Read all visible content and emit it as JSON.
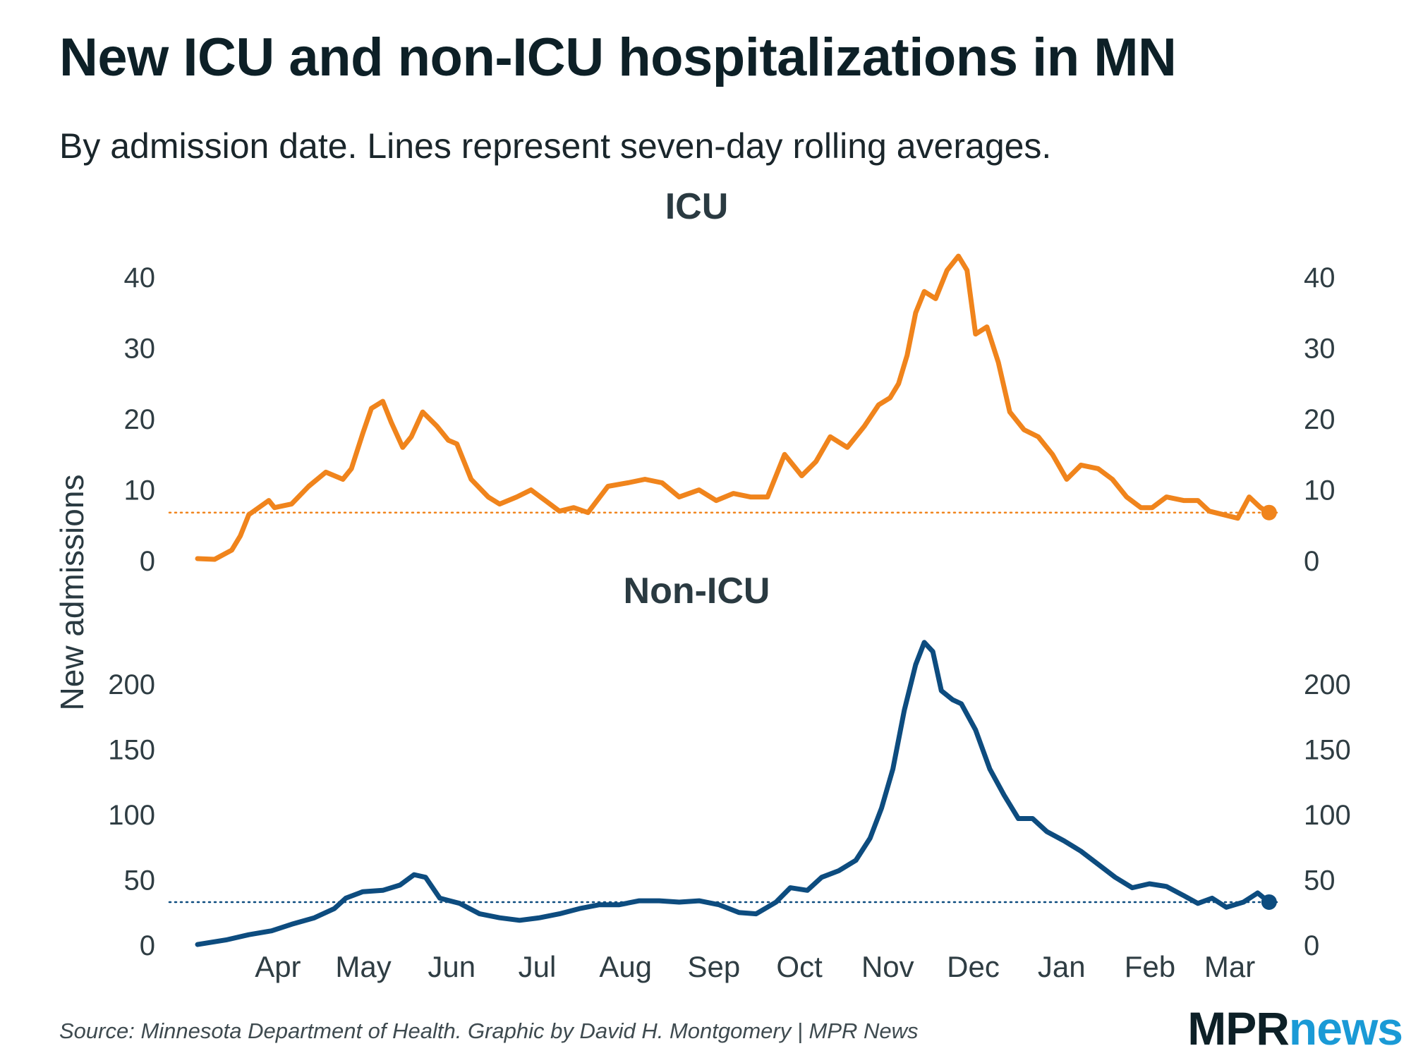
{
  "title": "New ICU and non-ICU hospitalizations in MN",
  "subtitle": "By admission date. Lines represent seven-day rolling averages.",
  "source": "Source: Minnesota Department of Health. Graphic by David H. Montgomery | MPR News",
  "logo": {
    "part1": "MPR",
    "part2": "news"
  },
  "colors": {
    "icu": "#f0841c",
    "non_icu": "#0d4c7f",
    "text": "#1f2d33"
  },
  "chart_data": [
    {
      "type": "line",
      "title": "ICU",
      "ylabel": "New admissions",
      "ylim": [
        0,
        45
      ],
      "yticks": [
        0,
        10,
        20,
        30,
        40
      ],
      "grid": false,
      "reference_line_y": 6.8,
      "x_range": [
        "2020-03-10",
        "2021-03-25"
      ],
      "x_ticks": [
        {
          "date": "2020-04-01",
          "label": "Apr"
        },
        {
          "date": "2020-05-01",
          "label": "May"
        },
        {
          "date": "2020-06-01",
          "label": "Jun"
        },
        {
          "date": "2020-07-01",
          "label": "Jul"
        },
        {
          "date": "2020-08-01",
          "label": "Aug"
        },
        {
          "date": "2020-09-01",
          "label": "Sep"
        },
        {
          "date": "2020-10-01",
          "label": "Oct"
        },
        {
          "date": "2020-11-01",
          "label": "Nov"
        },
        {
          "date": "2020-12-01",
          "label": "Dec"
        },
        {
          "date": "2021-01-01",
          "label": "Jan"
        },
        {
          "date": "2021-02-01",
          "label": "Feb"
        },
        {
          "date": "2021-03-01",
          "label": "Mar"
        }
      ],
      "series": [
        {
          "color": "#f0841c",
          "points": [
            [
              "2020-03-10",
              0.3
            ],
            [
              "2020-03-16",
              0.2
            ],
            [
              "2020-03-22",
              1.5
            ],
            [
              "2020-03-25",
              3.5
            ],
            [
              "2020-03-28",
              6.5
            ],
            [
              "2020-04-04",
              8.5
            ],
            [
              "2020-04-06",
              7.5
            ],
            [
              "2020-04-12",
              8.0
            ],
            [
              "2020-04-18",
              10.5
            ],
            [
              "2020-04-24",
              12.5
            ],
            [
              "2020-04-30",
              11.5
            ],
            [
              "2020-05-03",
              13.0
            ],
            [
              "2020-05-07",
              18.0
            ],
            [
              "2020-05-10",
              21.5
            ],
            [
              "2020-05-14",
              22.5
            ],
            [
              "2020-05-17",
              19.5
            ],
            [
              "2020-05-21",
              16.0
            ],
            [
              "2020-05-24",
              17.5
            ],
            [
              "2020-05-28",
              21.0
            ],
            [
              "2020-06-02",
              19.0
            ],
            [
              "2020-06-06",
              17.0
            ],
            [
              "2020-06-09",
              16.5
            ],
            [
              "2020-06-14",
              11.5
            ],
            [
              "2020-06-20",
              9.0
            ],
            [
              "2020-06-24",
              8.0
            ],
            [
              "2020-06-30",
              9.0
            ],
            [
              "2020-07-05",
              10.0
            ],
            [
              "2020-07-10",
              8.5
            ],
            [
              "2020-07-15",
              7.0
            ],
            [
              "2020-07-20",
              7.5
            ],
            [
              "2020-07-25",
              6.8
            ],
            [
              "2020-08-01",
              10.5
            ],
            [
              "2020-08-08",
              11.0
            ],
            [
              "2020-08-14",
              11.5
            ],
            [
              "2020-08-20",
              11.0
            ],
            [
              "2020-08-26",
              9.0
            ],
            [
              "2020-09-02",
              10.0
            ],
            [
              "2020-09-08",
              8.5
            ],
            [
              "2020-09-14",
              9.5
            ],
            [
              "2020-09-20",
              9.0
            ],
            [
              "2020-09-26",
              9.0
            ],
            [
              "2020-10-02",
              15.0
            ],
            [
              "2020-10-08",
              12.0
            ],
            [
              "2020-10-13",
              14.0
            ],
            [
              "2020-10-18",
              17.5
            ],
            [
              "2020-10-24",
              16.0
            ],
            [
              "2020-10-30",
              19.0
            ],
            [
              "2020-11-04",
              22.0
            ],
            [
              "2020-11-08",
              23.0
            ],
            [
              "2020-11-11",
              25.0
            ],
            [
              "2020-11-14",
              29.0
            ],
            [
              "2020-11-17",
              35.0
            ],
            [
              "2020-11-20",
              38.0
            ],
            [
              "2020-11-24",
              37.0
            ],
            [
              "2020-11-28",
              41.0
            ],
            [
              "2020-12-02",
              43.0
            ],
            [
              "2020-12-05",
              41.0
            ],
            [
              "2020-12-08",
              32.0
            ],
            [
              "2020-12-12",
              33.0
            ],
            [
              "2020-12-16",
              28.0
            ],
            [
              "2020-12-20",
              21.0
            ],
            [
              "2020-12-25",
              18.5
            ],
            [
              "2020-12-30",
              17.5
            ],
            [
              "2021-01-04",
              15.0
            ],
            [
              "2021-01-09",
              11.5
            ],
            [
              "2021-01-14",
              13.5
            ],
            [
              "2021-01-20",
              13.0
            ],
            [
              "2021-01-25",
              11.5
            ],
            [
              "2021-01-30",
              9.0
            ],
            [
              "2021-02-04",
              7.5
            ],
            [
              "2021-02-08",
              7.5
            ],
            [
              "2021-02-13",
              9.0
            ],
            [
              "2021-02-19",
              8.5
            ],
            [
              "2021-02-24",
              8.5
            ],
            [
              "2021-02-28",
              7.0
            ],
            [
              "2021-03-05",
              6.5
            ],
            [
              "2021-03-10",
              6.0
            ],
            [
              "2021-03-14",
              9.0
            ],
            [
              "2021-03-18",
              7.5
            ],
            [
              "2021-03-21",
              6.8
            ]
          ]
        }
      ]
    },
    {
      "type": "line",
      "title": "Non-ICU",
      "ylabel": "New admissions",
      "ylim": [
        0,
        240
      ],
      "yticks": [
        0,
        50,
        100,
        150,
        200
      ],
      "grid": false,
      "reference_line_y": 33,
      "x_range": [
        "2020-03-10",
        "2021-03-25"
      ],
      "series": [
        {
          "color": "#0d4c7f",
          "points": [
            [
              "2020-03-10",
              0.5
            ],
            [
              "2020-03-20",
              4.0
            ],
            [
              "2020-03-28",
              8.0
            ],
            [
              "2020-04-05",
              11.0
            ],
            [
              "2020-04-12",
              16.0
            ],
            [
              "2020-04-20",
              21.0
            ],
            [
              "2020-04-27",
              28.0
            ],
            [
              "2020-05-01",
              36.0
            ],
            [
              "2020-05-07",
              41.0
            ],
            [
              "2020-05-14",
              42.0
            ],
            [
              "2020-05-20",
              46.0
            ],
            [
              "2020-05-25",
              54.0
            ],
            [
              "2020-05-29",
              52.0
            ],
            [
              "2020-06-03",
              36.0
            ],
            [
              "2020-06-10",
              32.0
            ],
            [
              "2020-06-17",
              24.0
            ],
            [
              "2020-06-24",
              21.0
            ],
            [
              "2020-07-01",
              19.0
            ],
            [
              "2020-07-08",
              21.0
            ],
            [
              "2020-07-15",
              24.0
            ],
            [
              "2020-07-22",
              28.0
            ],
            [
              "2020-07-29",
              31.0
            ],
            [
              "2020-08-05",
              31.0
            ],
            [
              "2020-08-12",
              34.0
            ],
            [
              "2020-08-19",
              34.0
            ],
            [
              "2020-08-26",
              33.0
            ],
            [
              "2020-09-02",
              34.0
            ],
            [
              "2020-09-09",
              31.0
            ],
            [
              "2020-09-16",
              25.0
            ],
            [
              "2020-09-22",
              24.0
            ],
            [
              "2020-09-29",
              33.0
            ],
            [
              "2020-10-04",
              44.0
            ],
            [
              "2020-10-10",
              42.0
            ],
            [
              "2020-10-15",
              52.0
            ],
            [
              "2020-10-21",
              57.0
            ],
            [
              "2020-10-27",
              65.0
            ],
            [
              "2020-11-01",
              82.0
            ],
            [
              "2020-11-05",
              105.0
            ],
            [
              "2020-11-09",
              135.0
            ],
            [
              "2020-11-13",
              180.0
            ],
            [
              "2020-11-17",
              215.0
            ],
            [
              "2020-11-20",
              232.0
            ],
            [
              "2020-11-23",
              225.0
            ],
            [
              "2020-11-26",
              195.0
            ],
            [
              "2020-11-30",
              188.0
            ],
            [
              "2020-12-03",
              185.0
            ],
            [
              "2020-12-08",
              165.0
            ],
            [
              "2020-12-13",
              135.0
            ],
            [
              "2020-12-18",
              115.0
            ],
            [
              "2020-12-23",
              97.0
            ],
            [
              "2020-12-28",
              97.0
            ],
            [
              "2021-01-02",
              87.0
            ],
            [
              "2021-01-08",
              80.0
            ],
            [
              "2021-01-14",
              72.0
            ],
            [
              "2021-01-20",
              62.0
            ],
            [
              "2021-01-26",
              52.0
            ],
            [
              "2021-02-01",
              44.0
            ],
            [
              "2021-02-07",
              47.0
            ],
            [
              "2021-02-13",
              45.0
            ],
            [
              "2021-02-19",
              38.0
            ],
            [
              "2021-02-24",
              32.0
            ],
            [
              "2021-03-01",
              36.0
            ],
            [
              "2021-03-06",
              29.0
            ],
            [
              "2021-03-12",
              33.0
            ],
            [
              "2021-03-17",
              40.0
            ],
            [
              "2021-03-21",
              33.0
            ]
          ]
        }
      ]
    }
  ]
}
